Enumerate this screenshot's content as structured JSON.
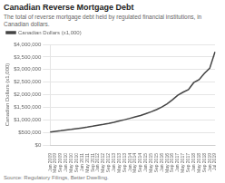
{
  "chart_data": {
    "type": "line",
    "title": "Canadian Reverse Mortgage Debt",
    "subtitle": "The total of reverse mortgage debt held by regulated financial institutions, in Canadian dollars.",
    "source": "Source: Regulatory Filings, Better Dwelling.",
    "ylabel": "Canadian Dollars (x1,000)",
    "categories": [
      "Jan 2009",
      "May 2009",
      "Sep 2009",
      "Jan 2010",
      "May 2010",
      "Sep 2010",
      "Jan 2011",
      "May 2011",
      "Sep 2011",
      "Jan 2012",
      "May 2012",
      "Sep 2012",
      "Jan 2013",
      "May 2013",
      "Sep 2013",
      "Jan 2014",
      "May 2014",
      "Sep 2014",
      "Jan 2015",
      "May 2015",
      "Sep 2015",
      "Jan 2016",
      "May 2016",
      "Sep 2016",
      "Jan 2017",
      "May 2017",
      "Sep 2017",
      "Jan 2018",
      "May 2018",
      "Sep 2018",
      "Jan 2019",
      "Jul 2019"
    ],
    "series": [
      {
        "name": "Canadian Dollars (x1,000)",
        "color": "#444444",
        "values": [
          515000,
          540000,
          565000,
          595000,
          620000,
          650000,
          680000,
          710000,
          745000,
          785000,
          820000,
          860000,
          905000,
          955000,
          1005000,
          1060000,
          1115000,
          1175000,
          1245000,
          1320000,
          1405000,
          1510000,
          1640000,
          1800000,
          1980000,
          2100000,
          2200000,
          2480000,
          2600000,
          2850000,
          3050000,
          3700000
        ]
      }
    ],
    "ylim": [
      0,
      4000000
    ],
    "yticks": [
      {
        "value": 0,
        "label": "$0"
      },
      {
        "value": 500000,
        "label": "$500,000"
      },
      {
        "value": 1000000,
        "label": "$1,000,000"
      },
      {
        "value": 1500000,
        "label": "$1,500,000"
      },
      {
        "value": 2000000,
        "label": "$2,000,000"
      },
      {
        "value": 2500000,
        "label": "$2,500,000"
      },
      {
        "value": 3000000,
        "label": "$3,000,000"
      },
      {
        "value": 3500000,
        "label": "$3,500,000"
      },
      {
        "value": 4000000,
        "label": "$4,000,000"
      }
    ],
    "grid": true,
    "legend": "upper left"
  }
}
